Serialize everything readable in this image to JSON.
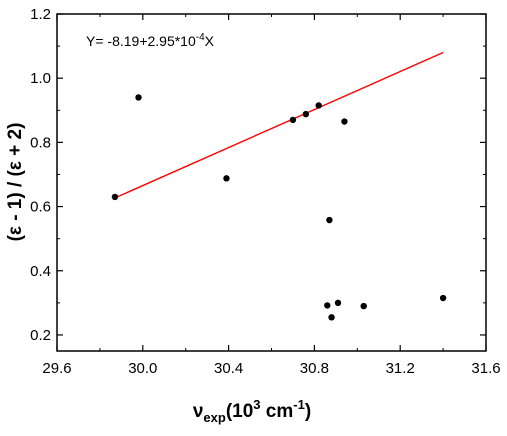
{
  "chart_data": {
    "type": "scatter",
    "xlabel_parts": {
      "main": "ν",
      "sub": "exp",
      "open": "(10",
      "sup": "3",
      "close": " cm",
      "sup2": "-1",
      "end": ")"
    },
    "ylabel": "(ε - 1) / (ε + 2)",
    "xlim": [
      29.6,
      31.6
    ],
    "ylim": [
      0.15,
      1.2
    ],
    "x_ticks": [
      29.6,
      30.0,
      30.4,
      30.8,
      31.2,
      31.6
    ],
    "x_tick_labels": [
      "29.6",
      "30.0",
      "30.4",
      "30.8",
      "31.2",
      "31.6"
    ],
    "y_ticks": [
      0.2,
      0.4,
      0.6,
      0.8,
      1.0,
      1.2
    ],
    "y_tick_labels": [
      "0.2",
      "0.4",
      "0.6",
      "0.8",
      "1.0",
      "1.2"
    ],
    "grid": false,
    "point_color": "#000000",
    "points": [
      {
        "x": 29.87,
        "y": 0.63
      },
      {
        "x": 29.98,
        "y": 0.94
      },
      {
        "x": 30.39,
        "y": 0.688
      },
      {
        "x": 30.7,
        "y": 0.87
      },
      {
        "x": 30.76,
        "y": 0.888
      },
      {
        "x": 30.82,
        "y": 0.915
      },
      {
        "x": 30.86,
        "y": 0.292
      },
      {
        "x": 30.87,
        "y": 0.558
      },
      {
        "x": 30.88,
        "y": 0.255
      },
      {
        "x": 30.91,
        "y": 0.3
      },
      {
        "x": 30.94,
        "y": 0.865
      },
      {
        "x": 31.03,
        "y": 0.29
      },
      {
        "x": 31.4,
        "y": 0.315
      }
    ],
    "fit_line": {
      "color": "#ff0000",
      "x": [
        29.87,
        31.4
      ],
      "y": [
        0.627,
        1.08
      ],
      "equation_parts": {
        "pre": "Y= -8.19+2.95*10",
        "sup": "-4",
        "post": "X"
      }
    }
  }
}
